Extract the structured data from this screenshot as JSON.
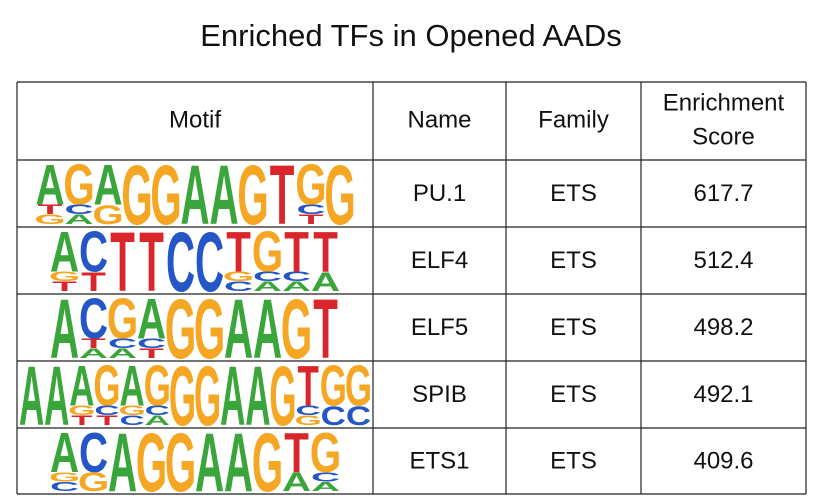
{
  "title": "Enriched TFs in Opened AADs",
  "table": {
    "header": [
      "Motif",
      "Name",
      "Family",
      [
        "Enrichment",
        "Score"
      ]
    ],
    "rows": [
      {
        "motif": [
          [
            "A",
            "T",
            "G"
          ],
          [
            "G",
            "C",
            "A"
          ],
          [
            "A",
            "G"
          ],
          [
            "G"
          ],
          [
            "G"
          ],
          [
            "A"
          ],
          [
            "A"
          ],
          [
            "G"
          ],
          [
            "T"
          ],
          [
            "G",
            "C",
            "T"
          ],
          [
            "G"
          ]
        ],
        "name": "PU.1",
        "family": "ETS",
        "score": 617.7
      },
      {
        "motif": [
          [
            "A",
            "G",
            "T"
          ],
          [
            "C",
            "T"
          ],
          [
            "T"
          ],
          [
            "T"
          ],
          [
            "C"
          ],
          [
            "C"
          ],
          [
            "T",
            "G",
            "C"
          ],
          [
            "G",
            "C",
            "A"
          ],
          [
            "T",
            "C",
            "A"
          ],
          [
            "T",
            "A"
          ]
        ],
        "name": "ELF4",
        "family": "ETS",
        "score": 512.4
      },
      {
        "motif": [
          [
            "A"
          ],
          [
            "C",
            "T",
            "A"
          ],
          [
            "G",
            "C",
            "A"
          ],
          [
            "A",
            "C",
            "T"
          ],
          [
            "G"
          ],
          [
            "G"
          ],
          [
            "A"
          ],
          [
            "A"
          ],
          [
            "G"
          ],
          [
            "T"
          ]
        ],
        "name": "ELF5",
        "family": "ETS",
        "score": 498.2
      },
      {
        "motif": [
          [
            "A"
          ],
          [
            "A"
          ],
          [
            "A",
            "G",
            "T"
          ],
          [
            "G",
            "C",
            "T"
          ],
          [
            "A",
            "G",
            "C"
          ],
          [
            "G",
            "C",
            "A"
          ],
          [
            "G"
          ],
          [
            "G"
          ],
          [
            "A"
          ],
          [
            "A"
          ],
          [
            "G"
          ],
          [
            "T",
            "C",
            "G"
          ],
          [
            "G",
            "C"
          ],
          [
            "G",
            "C"
          ]
        ],
        "name": "SPIB",
        "family": "ETS",
        "score": 492.1
      },
      {
        "motif": [
          [
            "A",
            "G",
            "C"
          ],
          [
            "C",
            "G"
          ],
          [
            "A"
          ],
          [
            "G"
          ],
          [
            "G"
          ],
          [
            "A"
          ],
          [
            "A"
          ],
          [
            "G"
          ],
          [
            "T",
            "A"
          ],
          [
            "G",
            "C",
            "A"
          ]
        ],
        "name": "ETS1",
        "family": "ETS",
        "score": 409.6
      }
    ]
  }
}
